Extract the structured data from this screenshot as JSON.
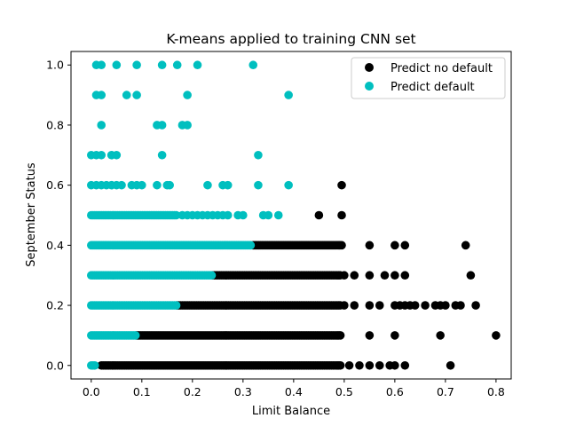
{
  "chart_data": {
    "type": "scatter",
    "title": "K-means applied to training CNN set",
    "xlabel": "Limit Balance",
    "ylabel": "September Status",
    "xlim": [
      -0.04,
      0.83
    ],
    "ylim": [
      -0.045,
      1.045
    ],
    "xticks": [
      "0.0",
      "0.1",
      "0.2",
      "0.3",
      "0.4",
      "0.5",
      "0.6",
      "0.7",
      "0.8"
    ],
    "yticks": [
      "0.0",
      "0.2",
      "0.4",
      "0.6",
      "0.8",
      "1.0"
    ],
    "grid": false,
    "legend_position": "top-right",
    "series": [
      {
        "name": "Predict no default",
        "color": "#000000",
        "dense": [
          {
            "y": 0.0,
            "x0": 0.02,
            "x1": 0.495
          },
          {
            "y": 0.1,
            "x0": 0.09,
            "x1": 0.495
          },
          {
            "y": 0.2,
            "x0": 0.17,
            "x1": 0.495
          },
          {
            "y": 0.3,
            "x0": 0.24,
            "x1": 0.495
          },
          {
            "y": 0.4,
            "x0": 0.32,
            "x1": 0.495
          }
        ],
        "points": [
          [
            0.51,
            0.0
          ],
          [
            0.53,
            0.0
          ],
          [
            0.55,
            0.0
          ],
          [
            0.57,
            0.0
          ],
          [
            0.59,
            0.0
          ],
          [
            0.6,
            0.0
          ],
          [
            0.62,
            0.0
          ],
          [
            0.71,
            0.0
          ],
          [
            0.55,
            0.1
          ],
          [
            0.6,
            0.1
          ],
          [
            0.69,
            0.1
          ],
          [
            0.8,
            0.1
          ],
          [
            0.5,
            0.2
          ],
          [
            0.52,
            0.2
          ],
          [
            0.55,
            0.2
          ],
          [
            0.57,
            0.2
          ],
          [
            0.6,
            0.2
          ],
          [
            0.61,
            0.2
          ],
          [
            0.62,
            0.2
          ],
          [
            0.63,
            0.2
          ],
          [
            0.64,
            0.2
          ],
          [
            0.66,
            0.2
          ],
          [
            0.68,
            0.2
          ],
          [
            0.69,
            0.2
          ],
          [
            0.7,
            0.2
          ],
          [
            0.72,
            0.2
          ],
          [
            0.73,
            0.2
          ],
          [
            0.76,
            0.2
          ],
          [
            0.5,
            0.3
          ],
          [
            0.52,
            0.3
          ],
          [
            0.55,
            0.3
          ],
          [
            0.58,
            0.3
          ],
          [
            0.6,
            0.3
          ],
          [
            0.62,
            0.3
          ],
          [
            0.75,
            0.3
          ],
          [
            0.55,
            0.4
          ],
          [
            0.6,
            0.4
          ],
          [
            0.62,
            0.4
          ],
          [
            0.74,
            0.4
          ],
          [
            0.45,
            0.5
          ],
          [
            0.495,
            0.5
          ],
          [
            0.495,
            0.6
          ]
        ]
      },
      {
        "name": "Predict default",
        "color": "#00bfbf",
        "dense": [
          {
            "y": 0.0,
            "x0": 0.0,
            "x1": 0.01
          },
          {
            "y": 0.1,
            "x0": 0.0,
            "x1": 0.088
          },
          {
            "y": 0.2,
            "x0": 0.0,
            "x1": 0.168
          },
          {
            "y": 0.3,
            "x0": 0.0,
            "x1": 0.238
          },
          {
            "y": 0.4,
            "x0": 0.0,
            "x1": 0.318
          },
          {
            "y": 0.5,
            "x0": 0.0,
            "x1": 0.17
          }
        ],
        "points": [
          [
            0.18,
            0.5
          ],
          [
            0.19,
            0.5
          ],
          [
            0.2,
            0.5
          ],
          [
            0.21,
            0.5
          ],
          [
            0.22,
            0.5
          ],
          [
            0.23,
            0.5
          ],
          [
            0.24,
            0.5
          ],
          [
            0.25,
            0.5
          ],
          [
            0.26,
            0.5
          ],
          [
            0.27,
            0.5
          ],
          [
            0.29,
            0.5
          ],
          [
            0.3,
            0.5
          ],
          [
            0.34,
            0.5
          ],
          [
            0.35,
            0.5
          ],
          [
            0.37,
            0.5
          ],
          [
            0.0,
            0.6
          ],
          [
            0.01,
            0.6
          ],
          [
            0.02,
            0.6
          ],
          [
            0.03,
            0.6
          ],
          [
            0.04,
            0.6
          ],
          [
            0.05,
            0.6
          ],
          [
            0.06,
            0.6
          ],
          [
            0.08,
            0.6
          ],
          [
            0.09,
            0.6
          ],
          [
            0.1,
            0.6
          ],
          [
            0.13,
            0.6
          ],
          [
            0.15,
            0.6
          ],
          [
            0.155,
            0.6
          ],
          [
            0.23,
            0.6
          ],
          [
            0.26,
            0.6
          ],
          [
            0.27,
            0.6
          ],
          [
            0.33,
            0.6
          ],
          [
            0.39,
            0.6
          ],
          [
            0.0,
            0.7
          ],
          [
            0.01,
            0.7
          ],
          [
            0.02,
            0.7
          ],
          [
            0.04,
            0.7
          ],
          [
            0.05,
            0.7
          ],
          [
            0.14,
            0.7
          ],
          [
            0.33,
            0.7
          ],
          [
            0.02,
            0.8
          ],
          [
            0.13,
            0.8
          ],
          [
            0.14,
            0.8
          ],
          [
            0.18,
            0.8
          ],
          [
            0.19,
            0.8
          ],
          [
            0.01,
            0.9
          ],
          [
            0.02,
            0.9
          ],
          [
            0.07,
            0.9
          ],
          [
            0.09,
            0.9
          ],
          [
            0.19,
            0.9
          ],
          [
            0.39,
            0.9
          ],
          [
            0.01,
            1.0
          ],
          [
            0.02,
            1.0
          ],
          [
            0.05,
            1.0
          ],
          [
            0.09,
            1.0
          ],
          [
            0.14,
            1.0
          ],
          [
            0.17,
            1.0
          ],
          [
            0.21,
            1.0
          ],
          [
            0.32,
            1.0
          ]
        ]
      }
    ]
  }
}
